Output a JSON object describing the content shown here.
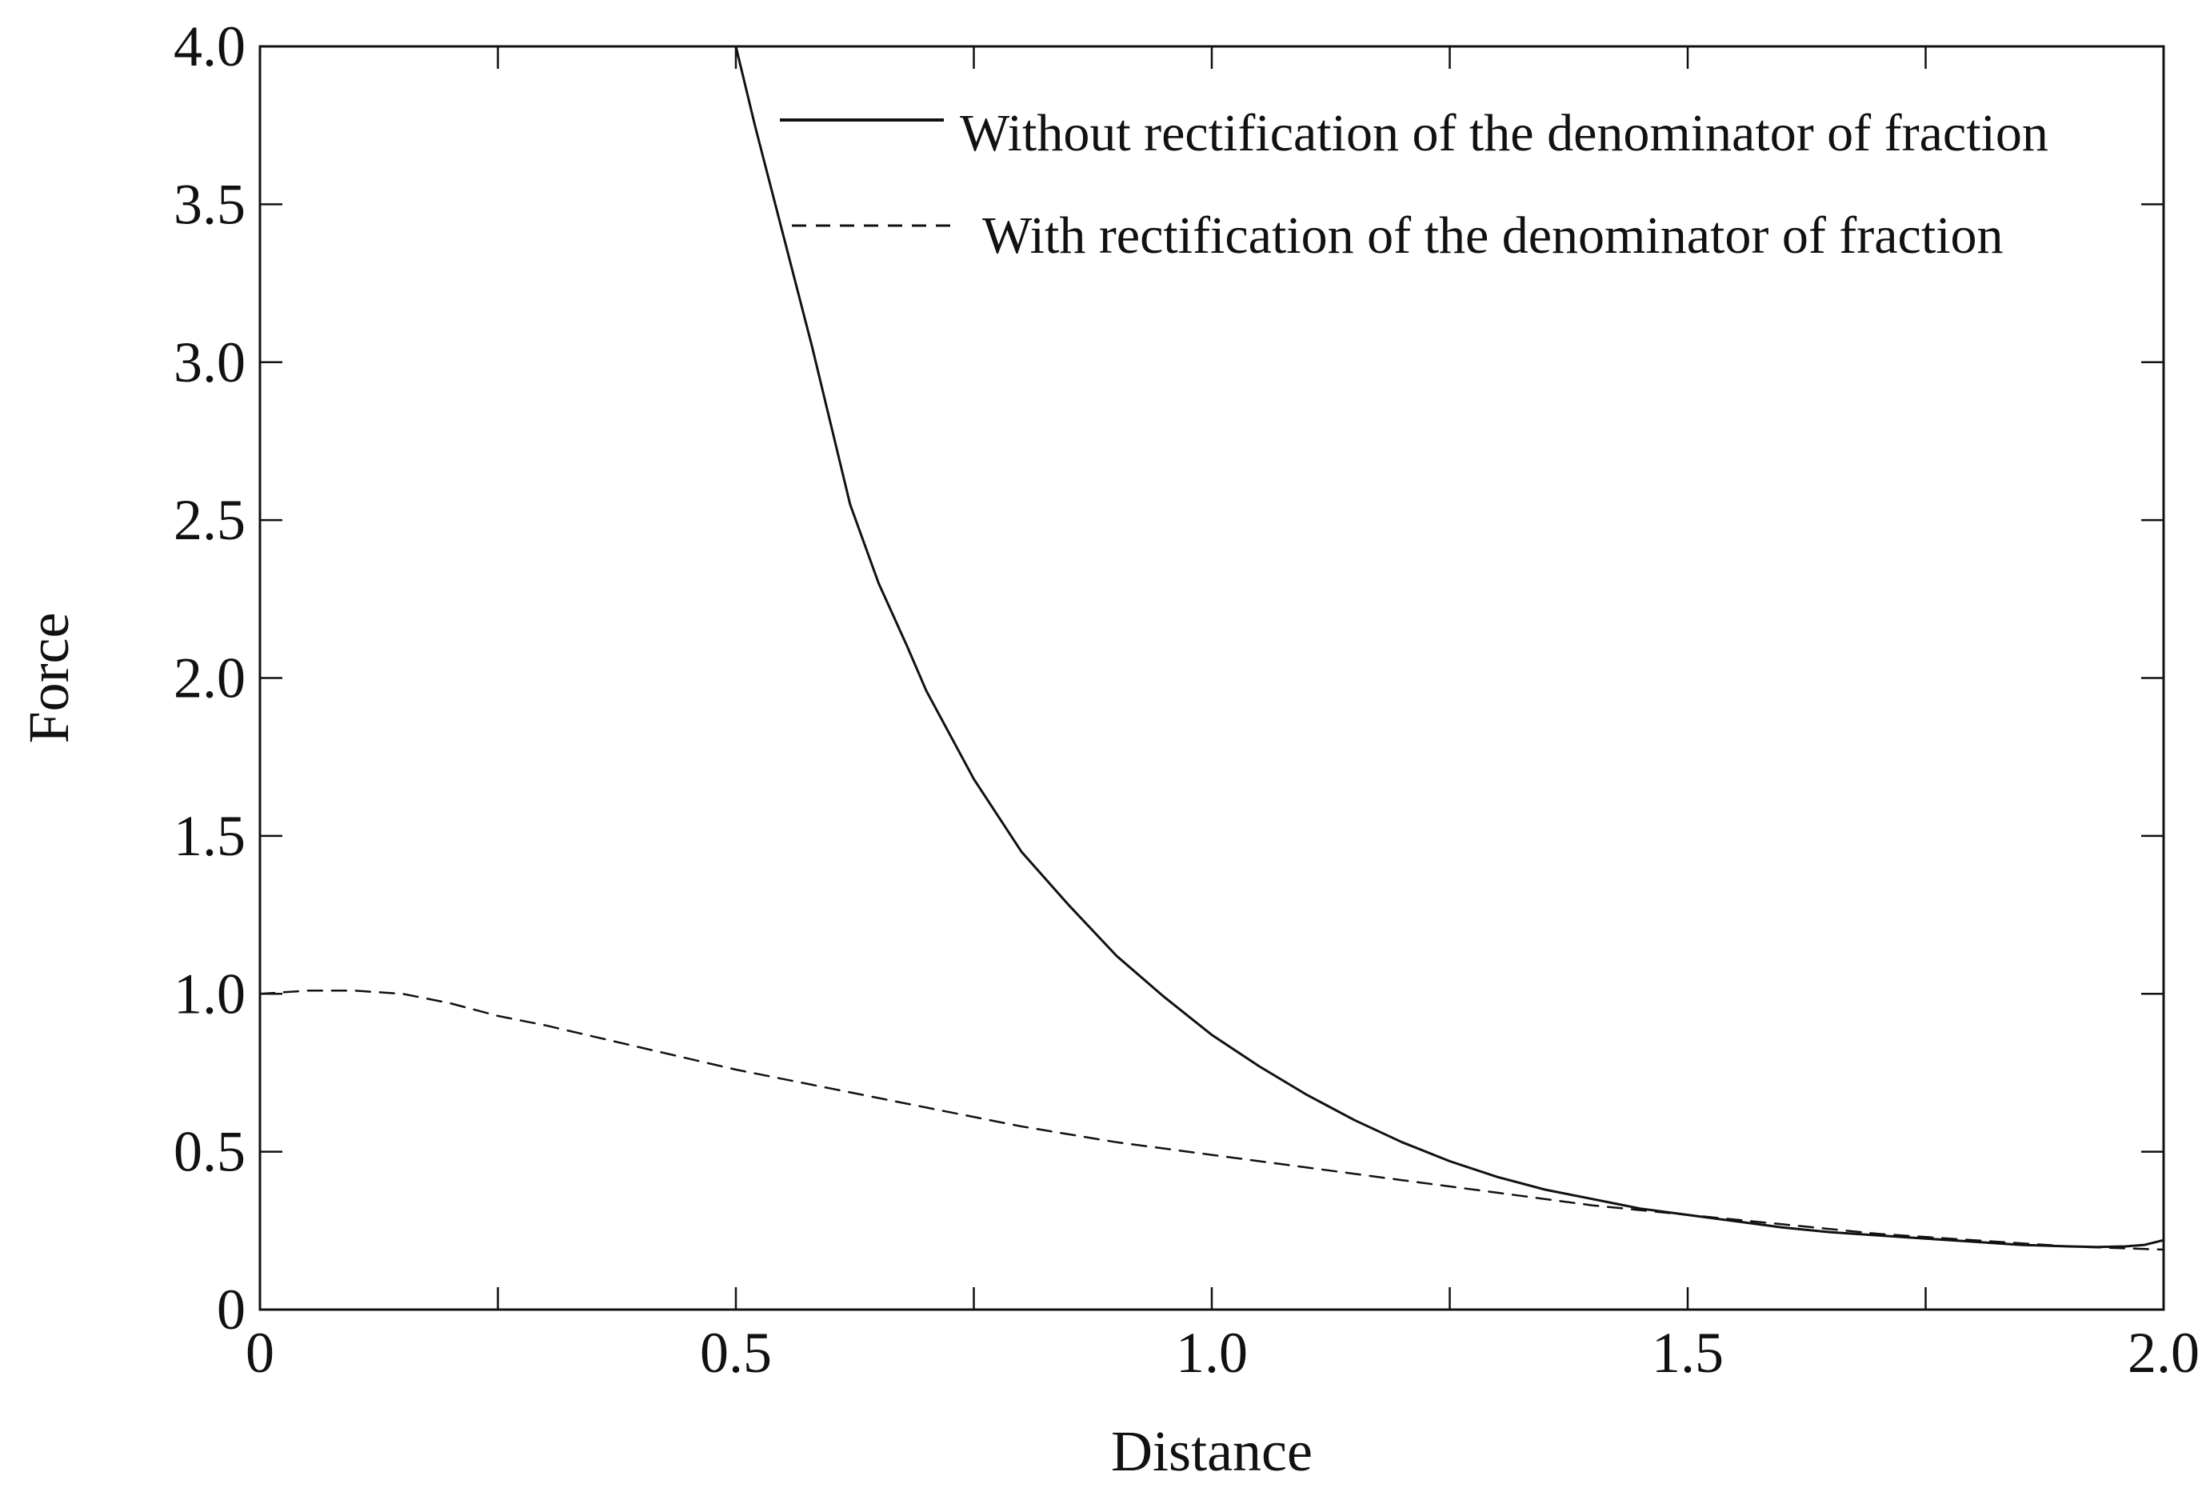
{
  "chart_data": {
    "type": "line",
    "title": "",
    "xlabel": "Distance",
    "ylabel": "Force",
    "xlim": [
      0,
      2.0
    ],
    "ylim": [
      0,
      4.0
    ],
    "x_ticks": [
      0,
      0.25,
      0.5,
      0.75,
      1.0,
      1.25,
      1.5,
      1.75,
      2.0
    ],
    "x_tick_labels": [
      {
        "value": 0,
        "label": "0"
      },
      {
        "value": 0.5,
        "label": "0.5"
      },
      {
        "value": 1.0,
        "label": "1.0"
      },
      {
        "value": 1.5,
        "label": "1.5"
      },
      {
        "value": 2.0,
        "label": "2.0"
      }
    ],
    "y_ticks": [
      {
        "value": 0,
        "label": "0"
      },
      {
        "value": 0.5,
        "label": "0.5"
      },
      {
        "value": 1.0,
        "label": "1.0"
      },
      {
        "value": 1.5,
        "label": "1.5"
      },
      {
        "value": 2.0,
        "label": "2.0"
      },
      {
        "value": 2.5,
        "label": "2.5"
      },
      {
        "value": 3.0,
        "label": "3.0"
      },
      {
        "value": 3.5,
        "label": "3.5"
      },
      {
        "value": 4.0,
        "label": "4.0"
      }
    ],
    "grid": false,
    "legend_position": "top-right",
    "series": [
      {
        "name": "Without rectification of the denominator of fraction",
        "style": "solid",
        "color": "#111111",
        "x": [
          0.5,
          0.52,
          0.55,
          0.58,
          0.6,
          0.62,
          0.65,
          0.68,
          0.7,
          0.75,
          0.8,
          0.85,
          0.9,
          0.95,
          1.0,
          1.05,
          1.1,
          1.15,
          1.2,
          1.25,
          1.3,
          1.35,
          1.4,
          1.45,
          1.5,
          1.55,
          1.6,
          1.65,
          1.7,
          1.75,
          1.8,
          1.85,
          1.9,
          1.93,
          1.96,
          1.98,
          2.0
        ],
        "y": [
          4.0,
          3.75,
          3.4,
          3.05,
          2.8,
          2.55,
          2.3,
          2.1,
          1.96,
          1.68,
          1.45,
          1.28,
          1.12,
          0.99,
          0.87,
          0.77,
          0.68,
          0.6,
          0.53,
          0.47,
          0.42,
          0.38,
          0.35,
          0.32,
          0.3,
          0.28,
          0.26,
          0.245,
          0.235,
          0.225,
          0.215,
          0.205,
          0.2,
          0.198,
          0.2,
          0.205,
          0.22
        ]
      },
      {
        "name": "With rectification of the denominator of fraction",
        "style": "dashed",
        "color": "#111111",
        "x": [
          0.0,
          0.05,
          0.1,
          0.15,
          0.2,
          0.25,
          0.3,
          0.4,
          0.5,
          0.6,
          0.7,
          0.8,
          0.9,
          1.0,
          1.1,
          1.2,
          1.3,
          1.4,
          1.5,
          1.6,
          1.7,
          1.8,
          1.9,
          2.0
        ],
        "y": [
          1.0,
          1.01,
          1.01,
          1.0,
          0.97,
          0.93,
          0.9,
          0.83,
          0.76,
          0.7,
          0.64,
          0.58,
          0.53,
          0.49,
          0.45,
          0.41,
          0.37,
          0.33,
          0.3,
          0.27,
          0.24,
          0.22,
          0.2,
          0.19
        ]
      }
    ]
  }
}
